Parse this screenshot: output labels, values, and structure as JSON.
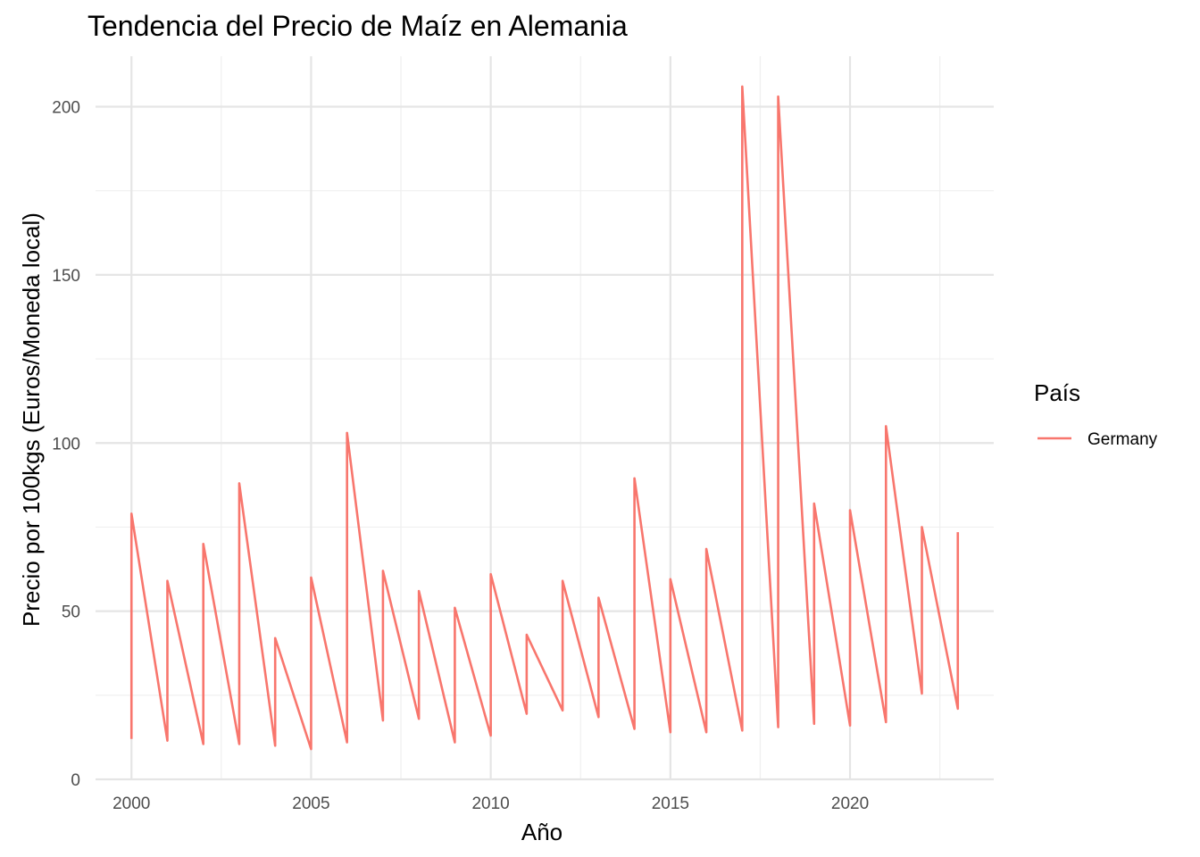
{
  "chart_data": {
    "type": "line",
    "title": "Tendencia del Precio de Maíz en Alemania",
    "xlabel": "Año",
    "ylabel": "Precio por 100kgs (Euros/Moneda local)",
    "xlim": [
      1999.0,
      2024.0
    ],
    "ylim": [
      0,
      215
    ],
    "x_ticks": [
      2000,
      2005,
      2010,
      2015,
      2020
    ],
    "y_ticks": [
      0,
      50,
      100,
      150,
      200
    ],
    "grid": true,
    "legend": {
      "title": "País",
      "position": "right"
    },
    "series": [
      {
        "name": "Germany",
        "color": "#F8766D",
        "x": [
          2000,
          2000,
          2001,
          2001,
          2002,
          2002,
          2003,
          2003,
          2004,
          2004,
          2005,
          2005,
          2006,
          2006,
          2007,
          2007,
          2008,
          2008,
          2009,
          2009,
          2010,
          2010,
          2011,
          2011,
          2012,
          2012,
          2013,
          2013,
          2014,
          2014,
          2015,
          2015,
          2016,
          2016,
          2017,
          2017,
          2018,
          2018,
          2019,
          2019,
          2020,
          2020,
          2021,
          2021,
          2022,
          2022,
          2023,
          2023
        ],
        "y": [
          12,
          79,
          11.5,
          59,
          10.5,
          70,
          10.5,
          88,
          10,
          42,
          9,
          60,
          11,
          103,
          17.5,
          62,
          18,
          56,
          11,
          51,
          13,
          61,
          19.5,
          43,
          20.5,
          59,
          18.5,
          54,
          15,
          89.5,
          14,
          59.5,
          14,
          68.5,
          14.5,
          206,
          15.5,
          203,
          16.5,
          82,
          16,
          80,
          17,
          105,
          25.5,
          75,
          21,
          73.5
        ]
      }
    ]
  }
}
